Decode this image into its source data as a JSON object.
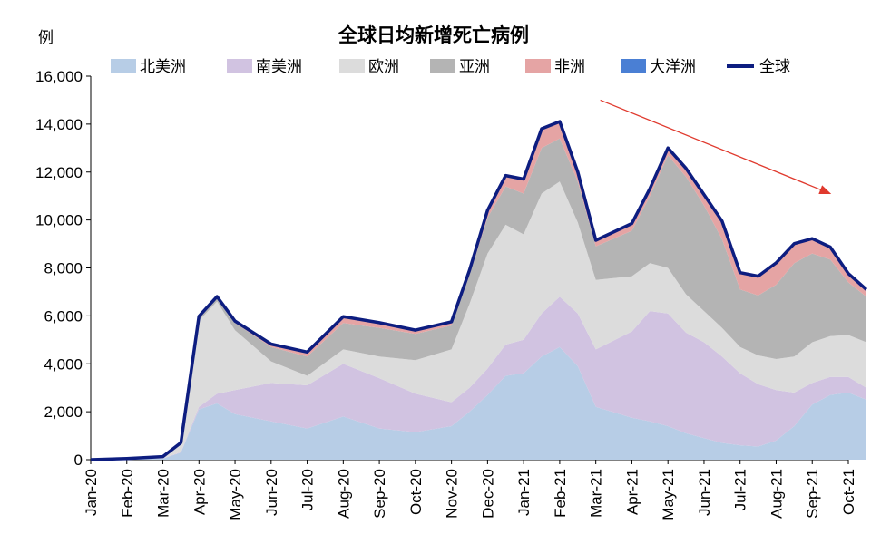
{
  "chart_data": {
    "type": "area",
    "title": "全球日均新增死亡病例",
    "ylabel": "例",
    "xlabel": "",
    "ylim": [
      0,
      16000
    ],
    "yticks": [
      0,
      2000,
      4000,
      6000,
      8000,
      10000,
      12000,
      14000,
      16000
    ],
    "ytick_labels": [
      "0",
      "2,000",
      "4,000",
      "6,000",
      "8,000",
      "10,000",
      "12,000",
      "14,000",
      "16,000"
    ],
    "x_labels": [
      "Jan-20",
      "Feb-20",
      "Mar-20",
      "Apr-20",
      "May-20",
      "Jun-20",
      "Jul-20",
      "Aug-20",
      "Sep-20",
      "Oct-20",
      "Nov-20",
      "Dec-20",
      "Jan-21",
      "Feb-21",
      "Mar-21",
      "Apr-21",
      "May-21",
      "Jun-21",
      "Jul-21",
      "Aug-21",
      "Sep-21",
      "Oct-21"
    ],
    "x": [
      "Jan-20",
      "Feb-20",
      "Mar-20",
      "Mar-20b",
      "Apr-20",
      "Apr-20b",
      "May-20",
      "Jun-20",
      "Jul-20",
      "Aug-20",
      "Sep-20",
      "Oct-20",
      "Nov-20",
      "Nov-20b",
      "Dec-20",
      "Dec-20b",
      "Jan-21",
      "Jan-21b",
      "Feb-21",
      "Feb-21b",
      "Mar-21",
      "Apr-21",
      "Apr-21b",
      "May-21",
      "May-21b",
      "Jun-21",
      "Jun-21b",
      "Jul-21",
      "Jul-21b",
      "Aug-21",
      "Aug-21b",
      "Sep-21",
      "Sep-21b",
      "Oct-21",
      "Oct-21b"
    ],
    "stacked": true,
    "legend_position": "top",
    "series": [
      {
        "name": "北美洲",
        "color": "#b7cde6",
        "values": [
          0,
          20,
          50,
          300,
          2100,
          2350,
          1900,
          1600,
          1300,
          1800,
          1300,
          1150,
          1400,
          2000,
          2700,
          3500,
          3600,
          4300,
          4700,
          3900,
          2200,
          1750,
          1600,
          1400,
          1100,
          900,
          700,
          600,
          550,
          800,
          1400,
          2300,
          2700,
          2800,
          2500
        ]
      },
      {
        "name": "南美洲",
        "color": "#d1c3e1",
        "values": [
          0,
          0,
          5,
          20,
          100,
          400,
          1000,
          1600,
          1800,
          2200,
          2100,
          1600,
          1000,
          1000,
          1100,
          1300,
          1400,
          1800,
          2100,
          2200,
          2400,
          3600,
          4600,
          4700,
          4200,
          4000,
          3600,
          3000,
          2600,
          2100,
          1400,
          900,
          750,
          650,
          500
        ]
      },
      {
        "name": "欧洲",
        "color": "#dcdcdc",
        "values": [
          0,
          0,
          30,
          350,
          3600,
          3850,
          2500,
          900,
          400,
          600,
          900,
          1400,
          2200,
          3500,
          4800,
          5000,
          4400,
          5000,
          4800,
          3800,
          2900,
          2300,
          2000,
          1900,
          1600,
          1300,
          1200,
          1100,
          1200,
          1300,
          1500,
          1700,
          1700,
          1750,
          1900
        ]
      },
      {
        "name": "亚洲",
        "color": "#b4b4b4",
        "values": [
          0,
          30,
          40,
          30,
          150,
          150,
          300,
          600,
          800,
          1100,
          1200,
          1100,
          1000,
          1200,
          1500,
          1600,
          1700,
          1900,
          1800,
          1700,
          1400,
          1900,
          2800,
          4700,
          4900,
          4400,
          3700,
          2400,
          2500,
          3100,
          3900,
          3700,
          3200,
          2200,
          1900
        ]
      },
      {
        "name": "非洲",
        "color": "#e5a4a4",
        "values": [
          0,
          0,
          2,
          5,
          30,
          50,
          80,
          120,
          180,
          250,
          200,
          150,
          150,
          200,
          300,
          450,
          600,
          800,
          700,
          400,
          250,
          300,
          300,
          300,
          350,
          450,
          750,
          700,
          800,
          900,
          800,
          600,
          500,
          350,
          280
        ]
      },
      {
        "name": "大洋洲",
        "color": "#4a7fd4",
        "values": [
          0,
          0,
          1,
          1,
          3,
          3,
          2,
          3,
          10,
          20,
          15,
          5,
          5,
          5,
          5,
          5,
          5,
          5,
          5,
          5,
          5,
          5,
          5,
          5,
          5,
          5,
          5,
          5,
          5,
          10,
          15,
          20,
          20,
          15,
          20
        ]
      },
      {
        "name": "全球",
        "color": "#0d1d80",
        "type": "line",
        "values": [
          0,
          50,
          127,
          706,
          5983,
          6803,
          5782,
          4823,
          4490,
          5970,
          5715,
          5405,
          5755,
          7905,
          10405,
          11855,
          11705,
          13805,
          14105,
          12005,
          9155,
          9855,
          11305,
          13005,
          12155,
          11055,
          9955,
          7805,
          7655,
          8210,
          9015,
          9220,
          8870,
          7765,
          7100
        ]
      }
    ],
    "annotations": [
      {
        "type": "arrow",
        "color": "#e03a2e",
        "from": {
          "x": "Mar-21",
          "y": 15000
        },
        "to": {
          "x": "Oct-21",
          "y": 11100
        }
      }
    ]
  }
}
